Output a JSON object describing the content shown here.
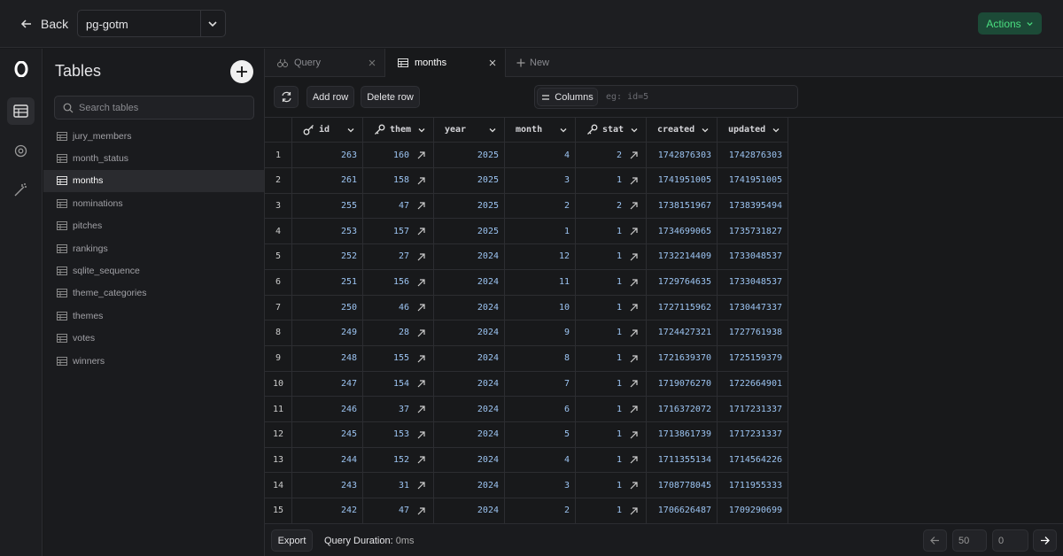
{
  "header": {
    "back": "Back",
    "database": "pg-gotm",
    "actions": "Actions"
  },
  "sidebar": {
    "title": "Tables",
    "search_placeholder": "Search tables",
    "selected": 2,
    "tables": [
      "jury_members",
      "month_status",
      "months",
      "nominations",
      "pitches",
      "rankings",
      "sqlite_sequence",
      "theme_categories",
      "themes",
      "votes",
      "winners"
    ]
  },
  "tabs": [
    "Query",
    "months"
  ],
  "active_tab": 1,
  "new_tab": "New",
  "toolbar": {
    "add_row": "Add row",
    "delete_row": "Delete row",
    "columns": "Columns",
    "filter_placeholder": "eg: id=5"
  },
  "table": {
    "columns": [
      {
        "name": "id",
        "key": "primary"
      },
      {
        "name": "them",
        "key": "foreign"
      },
      {
        "name": "year"
      },
      {
        "name": "month"
      },
      {
        "name": "stat",
        "key": "foreign"
      },
      {
        "name": "created"
      },
      {
        "name": "updated"
      }
    ],
    "row_numbers": [
      1,
      2,
      3,
      4,
      5,
      6,
      7,
      8,
      9,
      10,
      11,
      12,
      13,
      14,
      15
    ],
    "rows": [
      [
        263,
        160,
        2025,
        4,
        2,
        1742876303,
        1742876303
      ],
      [
        261,
        158,
        2025,
        3,
        1,
        1741951005,
        1741951005
      ],
      [
        255,
        47,
        2025,
        2,
        2,
        1738151967,
        1738395494
      ],
      [
        253,
        157,
        2025,
        1,
        1,
        1734699065,
        1735731827
      ],
      [
        252,
        27,
        2024,
        12,
        1,
        1732214409,
        1733048537
      ],
      [
        251,
        156,
        2024,
        11,
        1,
        1729764635,
        1733048537
      ],
      [
        250,
        46,
        2024,
        10,
        1,
        1727115962,
        1730447337
      ],
      [
        249,
        28,
        2024,
        9,
        1,
        1724427321,
        1727761938
      ],
      [
        248,
        155,
        2024,
        8,
        1,
        1721639370,
        1725159379
      ],
      [
        247,
        154,
        2024,
        7,
        1,
        1719076270,
        1722664901
      ],
      [
        246,
        37,
        2024,
        6,
        1,
        1716372072,
        1717231337
      ],
      [
        245,
        153,
        2024,
        5,
        1,
        1713861739,
        1717231337
      ],
      [
        244,
        152,
        2024,
        4,
        1,
        1711355134,
        1714564226
      ],
      [
        243,
        31,
        2024,
        3,
        1,
        1708778045,
        1711955333
      ],
      [
        242,
        47,
        2024,
        2,
        1,
        1706626487,
        1709290699
      ]
    ]
  },
  "footer": {
    "export": "Export",
    "duration_label": "Query Duration:",
    "duration": "0ms",
    "limit": "50",
    "offset": "0"
  }
}
